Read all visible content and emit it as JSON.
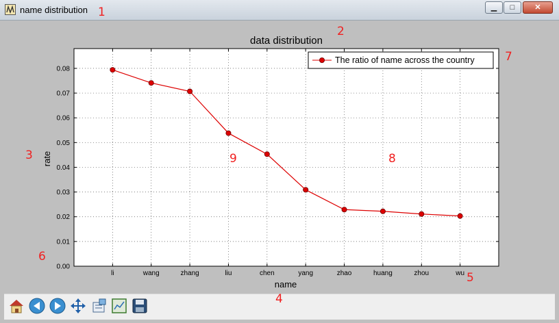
{
  "window": {
    "title": "name distribution",
    "controls": {
      "minimize": "▁",
      "maximize": "□",
      "close": "✕"
    }
  },
  "annotations": [
    "1",
    "2",
    "3",
    "4",
    "5",
    "6",
    "7",
    "8",
    "9"
  ],
  "toolbar": {
    "buttons": [
      "home-icon",
      "back-icon",
      "forward-icon",
      "pan-icon",
      "configure-subplots-icon",
      "zoom-rect-icon",
      "save-icon"
    ]
  },
  "colors": {
    "line": "#dd0000",
    "marker_edge": "#6b0000",
    "background": "#bfbfbf"
  },
  "chart_data": {
    "type": "line",
    "title": "data distribution",
    "xlabel": "name",
    "ylabel": "rate",
    "categories": [
      "li",
      "wang",
      "zhang",
      "liu",
      "chen",
      "yang",
      "zhao",
      "huang",
      "zhou",
      "wu"
    ],
    "series": [
      {
        "name": "The ratio of name across the country",
        "values": [
          0.0794,
          0.0741,
          0.0707,
          0.0538,
          0.0453,
          0.0309,
          0.0229,
          0.0222,
          0.0211,
          0.0203
        ]
      }
    ],
    "ylim": [
      0,
      0.088
    ],
    "yticks": [
      "0.00",
      "0.01",
      "0.02",
      "0.03",
      "0.04",
      "0.05",
      "0.06",
      "0.07",
      "0.08"
    ],
    "grid": true,
    "legend_position": "top-right"
  }
}
